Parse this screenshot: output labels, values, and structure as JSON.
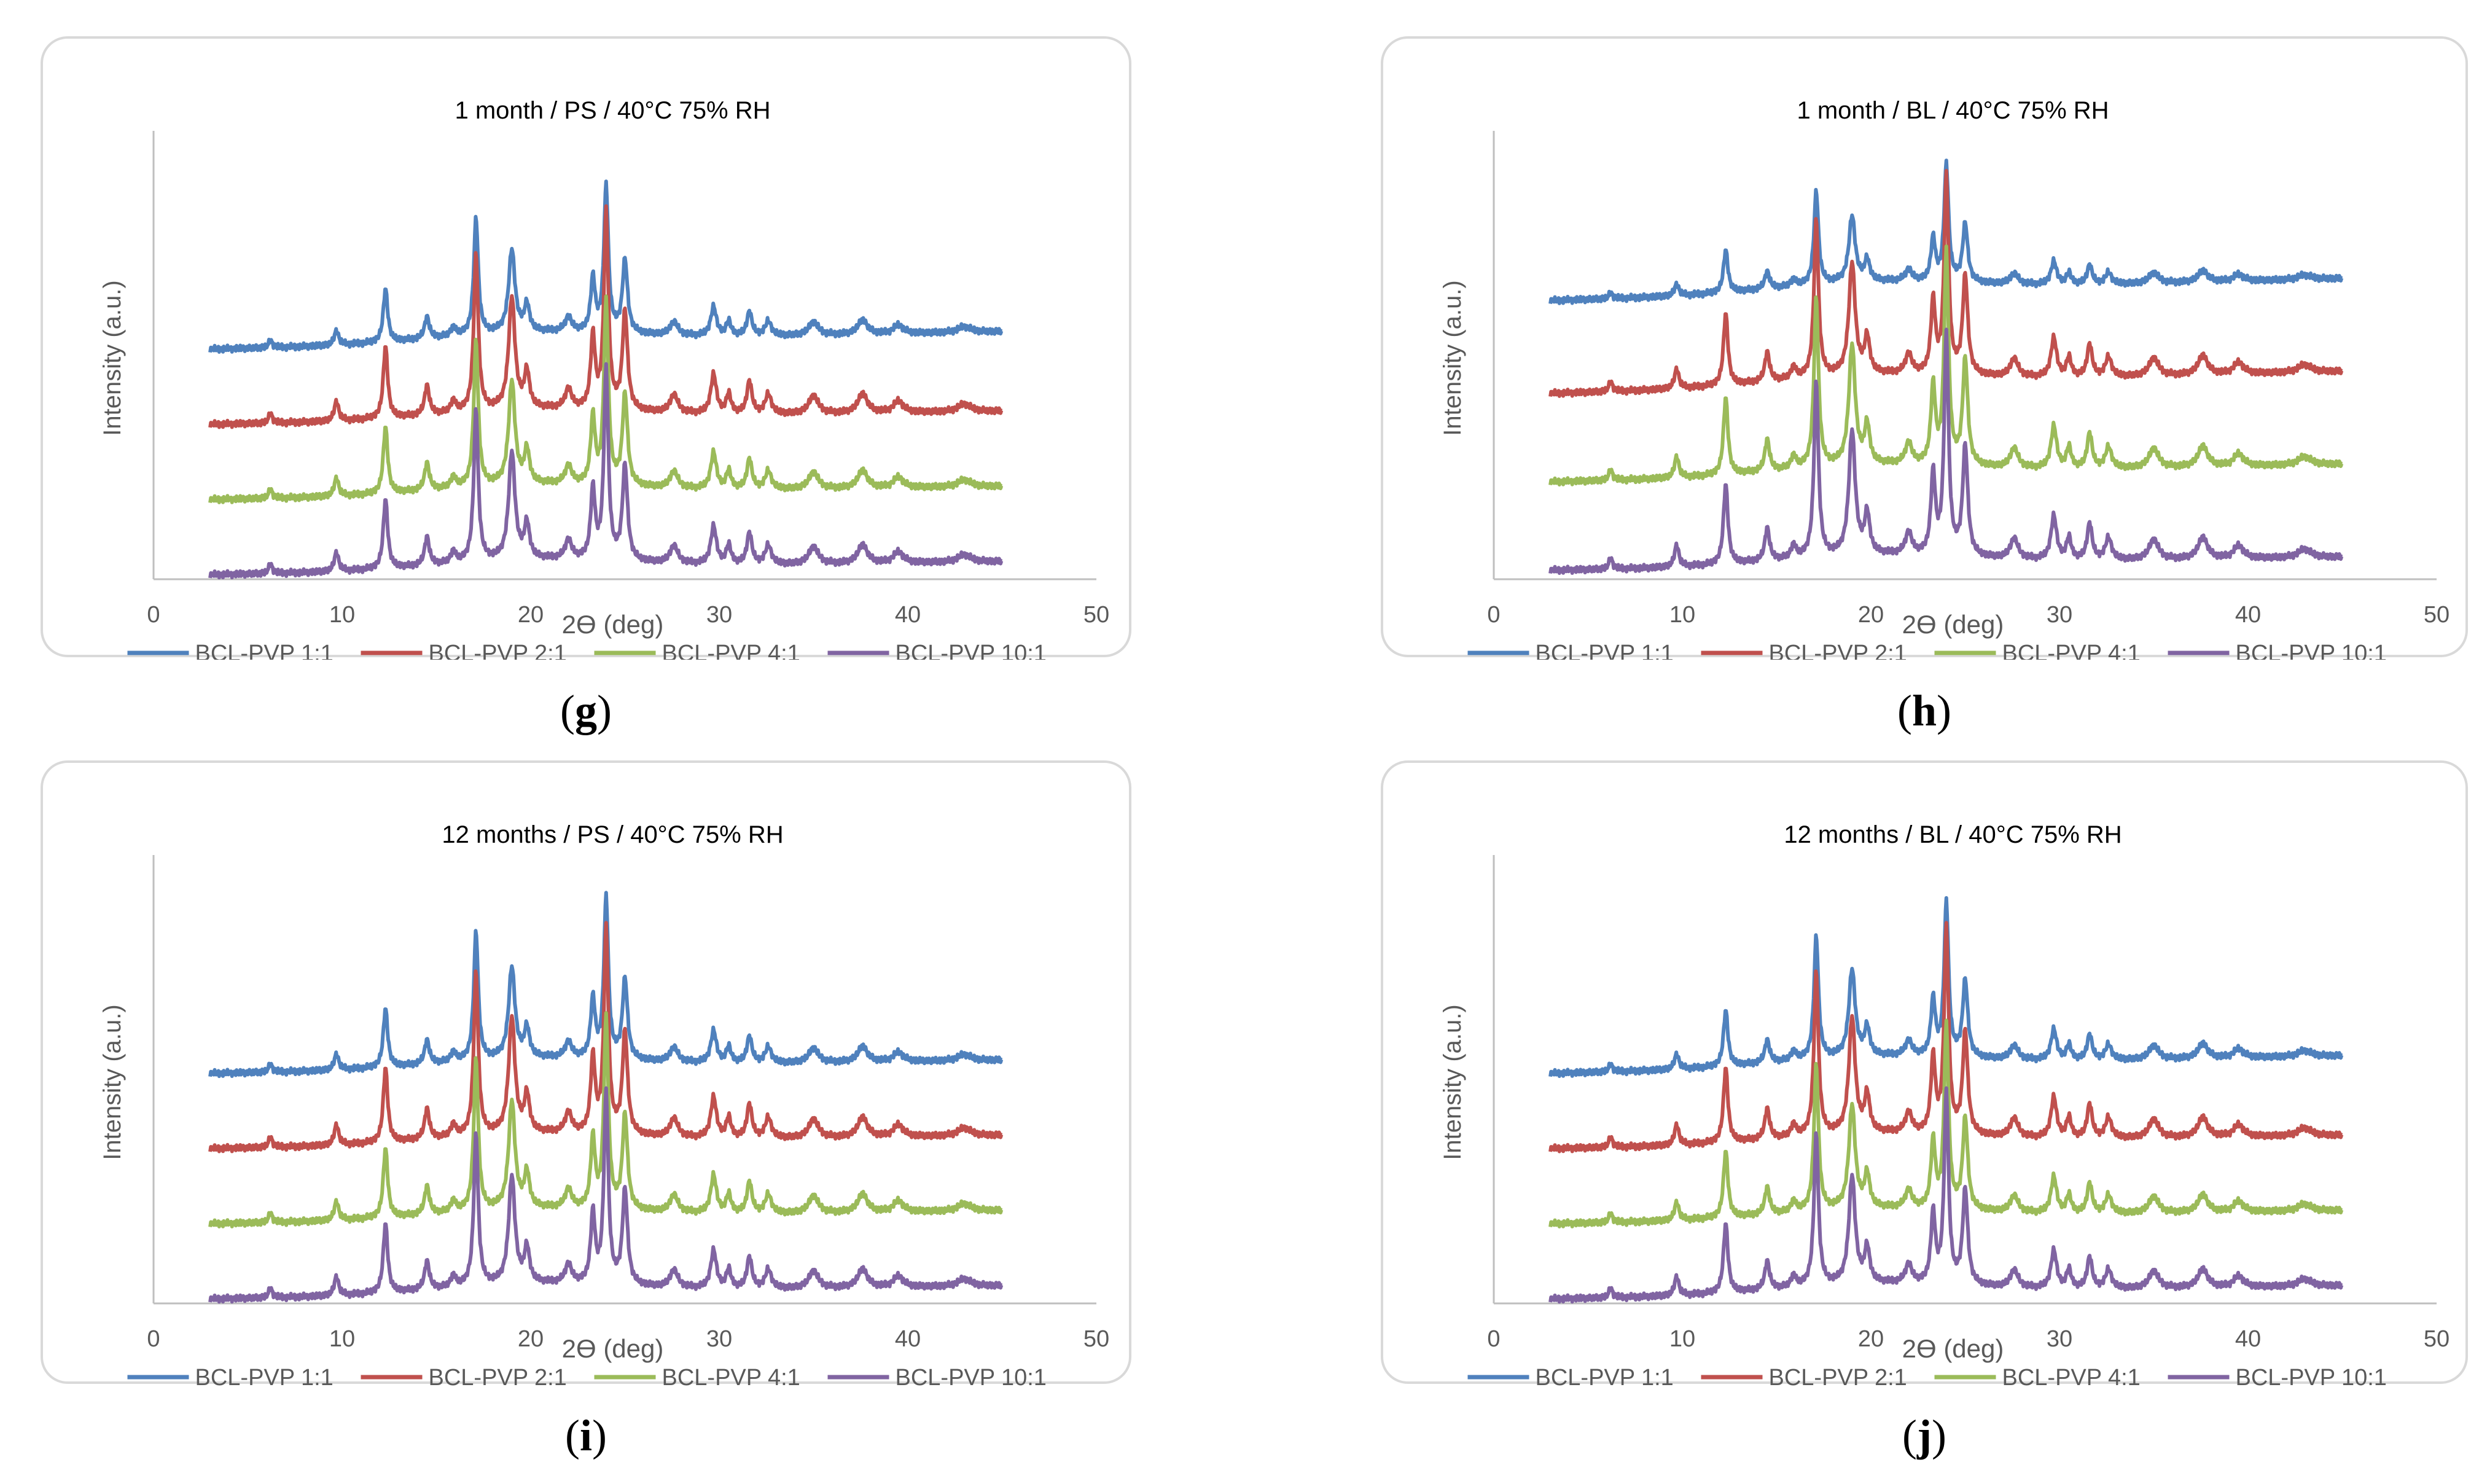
{
  "chart_data": [
    {
      "type": "line",
      "panel_label": "g",
      "title": "1 month / PS / 40°C 75% RH",
      "xlabel": "2ϴ (deg)",
      "ylabel": "Intensity (a.u.)",
      "xlim": [
        0,
        50
      ],
      "xticks": [
        0,
        10,
        20,
        30,
        40,
        50
      ],
      "x_range": [
        3,
        45
      ],
      "legend_position": "bottom",
      "grid": false,
      "series": [
        {
          "name": "BCL-PVP 1:1",
          "color": "#4f81bd",
          "baseline_start": 0.52,
          "baseline_end": 0.56,
          "peak_scale": 1.0
        },
        {
          "name": "BCL-PVP 2:1",
          "color": "#c0504d",
          "baseline_start": 0.35,
          "baseline_end": 0.38,
          "peak_scale": 1.35
        },
        {
          "name": "BCL-PVP 4:1",
          "color": "#9bbb59",
          "baseline_start": 0.18,
          "baseline_end": 0.21,
          "peak_scale": 1.25
        },
        {
          "name": "BCL-PVP 10:1",
          "color": "#8064a2",
          "baseline_start": 0.01,
          "baseline_end": 0.04,
          "peak_scale": 1.3
        }
      ]
    },
    {
      "type": "line",
      "panel_label": "h",
      "title": "1 month / BL / 40°C 75% RH",
      "xlabel": "2ϴ (deg)",
      "ylabel": "Intensity (a.u.)",
      "xlim": [
        0,
        50
      ],
      "xticks": [
        0,
        10,
        20,
        30,
        40,
        50
      ],
      "x_range": [
        3,
        45
      ],
      "legend_position": "bottom",
      "grid": false,
      "series": [
        {
          "name": "BCL-PVP 1:1",
          "color": "#4f81bd",
          "baseline_start": 0.63,
          "baseline_end": 0.68,
          "peak_scale": 0.8
        },
        {
          "name": "BCL-PVP 2:1",
          "color": "#c0504d",
          "baseline_start": 0.42,
          "baseline_end": 0.47,
          "peak_scale": 1.35
        },
        {
          "name": "BCL-PVP 4:1",
          "color": "#9bbb59",
          "baseline_start": 0.22,
          "baseline_end": 0.26,
          "peak_scale": 1.45
        },
        {
          "name": "BCL-PVP 10:1",
          "color": "#8064a2",
          "baseline_start": 0.02,
          "baseline_end": 0.05,
          "peak_scale": 1.5
        }
      ]
    },
    {
      "type": "line",
      "panel_label": "i",
      "title": "12 months / PS / 40°C 75% RH",
      "xlabel": "2ϴ (deg)",
      "ylabel": "Intensity (a.u.)",
      "xlim": [
        0,
        50
      ],
      "xticks": [
        0,
        10,
        20,
        30,
        40,
        50
      ],
      "x_range": [
        3,
        45
      ],
      "legend_position": "bottom",
      "grid": false,
      "series": [
        {
          "name": "BCL-PVP 1:1",
          "color": "#4f81bd",
          "baseline_start": 0.52,
          "baseline_end": 0.55,
          "peak_scale": 1.1
        },
        {
          "name": "BCL-PVP 2:1",
          "color": "#c0504d",
          "baseline_start": 0.35,
          "baseline_end": 0.38,
          "peak_scale": 1.4
        },
        {
          "name": "BCL-PVP 4:1",
          "color": "#9bbb59",
          "baseline_start": 0.18,
          "baseline_end": 0.21,
          "peak_scale": 1.3
        },
        {
          "name": "BCL-PVP 10:1",
          "color": "#8064a2",
          "baseline_start": 0.01,
          "baseline_end": 0.04,
          "peak_scale": 1.3
        }
      ]
    },
    {
      "type": "line",
      "panel_label": "j",
      "title": "12 months / BL / 40°C 75% RH",
      "xlabel": "2ϴ (deg)",
      "ylabel": "Intensity (a.u.)",
      "xlim": [
        0,
        50
      ],
      "xticks": [
        0,
        10,
        20,
        30,
        40,
        50
      ],
      "x_range": [
        3,
        45
      ],
      "legend_position": "bottom",
      "grid": false,
      "series": [
        {
          "name": "BCL-PVP 1:1",
          "color": "#4f81bd",
          "baseline_start": 0.52,
          "baseline_end": 0.56,
          "peak_scale": 1.05
        },
        {
          "name": "BCL-PVP 2:1",
          "color": "#c0504d",
          "baseline_start": 0.35,
          "baseline_end": 0.38,
          "peak_scale": 1.4
        },
        {
          "name": "BCL-PVP 4:1",
          "color": "#9bbb59",
          "baseline_start": 0.18,
          "baseline_end": 0.21,
          "peak_scale": 1.25
        },
        {
          "name": "BCL-PVP 10:1",
          "color": "#8064a2",
          "baseline_start": 0.01,
          "baseline_end": 0.04,
          "peak_scale": 1.3
        }
      ]
    }
  ],
  "diffraction_peaks": [
    {
      "x": 6.2,
      "h": 0.015,
      "w": 0.12
    },
    {
      "x": 9.7,
      "h": 0.03,
      "w": 0.14
    },
    {
      "x": 12.3,
      "h": 0.11,
      "w": 0.14
    },
    {
      "x": 14.5,
      "h": 0.045,
      "w": 0.15
    },
    {
      "x": 15.9,
      "h": 0.018,
      "w": 0.15
    },
    {
      "x": 17.1,
      "h": 0.24,
      "w": 0.14
    },
    {
      "x": 19.0,
      "h": 0.17,
      "w": 0.2
    },
    {
      "x": 19.8,
      "h": 0.055,
      "w": 0.16
    },
    {
      "x": 22.0,
      "h": 0.03,
      "w": 0.2
    },
    {
      "x": 23.3,
      "h": 0.11,
      "w": 0.14
    },
    {
      "x": 24.0,
      "h": 0.3,
      "w": 0.14
    },
    {
      "x": 25.0,
      "h": 0.15,
      "w": 0.16
    },
    {
      "x": 27.6,
      "h": 0.028,
      "w": 0.25
    },
    {
      "x": 29.7,
      "h": 0.06,
      "w": 0.18
    },
    {
      "x": 30.5,
      "h": 0.03,
      "w": 0.15
    },
    {
      "x": 31.6,
      "h": 0.05,
      "w": 0.16
    },
    {
      "x": 32.6,
      "h": 0.03,
      "w": 0.2
    },
    {
      "x": 35.0,
      "h": 0.028,
      "w": 0.3
    },
    {
      "x": 37.6,
      "h": 0.03,
      "w": 0.3
    },
    {
      "x": 39.5,
      "h": 0.018,
      "w": 0.3
    },
    {
      "x": 43.0,
      "h": 0.012,
      "w": 0.4
    }
  ]
}
